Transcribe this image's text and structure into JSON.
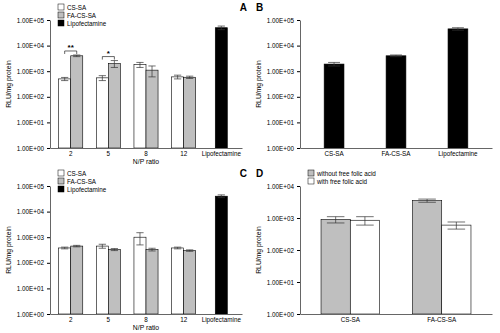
{
  "chart_data": [
    {
      "type": "bar",
      "title": "A",
      "x_label": "N/P ratio",
      "y_label": "RLU/mg protein",
      "log": "y",
      "legend": "top-left",
      "categories": [
        "2",
        "5",
        "8",
        "12",
        "Lipofectamine"
      ],
      "series": [
        {
          "name": "CS-SA",
          "color": "#ffffff",
          "values": [
            500,
            550,
            1800,
            600,
            null
          ],
          "errors": [
            70,
            120,
            400,
            100,
            null
          ]
        },
        {
          "name": "FA-CS-SA",
          "color": "#bfbfbf",
          "values": [
            4000,
            2000,
            1100,
            580,
            null
          ],
          "errors": [
            300,
            600,
            500,
            60,
            null
          ]
        },
        {
          "name": "Lipofectamine",
          "color": "#000000",
          "values": [
            null,
            null,
            null,
            null,
            50000
          ],
          "errors": [
            null,
            null,
            null,
            null,
            8000
          ]
        }
      ],
      "annotations": [
        {
          "text": "**",
          "category": "2"
        },
        {
          "text": "*",
          "category": "5"
        }
      ],
      "ylim": [
        1,
        100000
      ],
      "yticks": [
        {
          "value": 1,
          "label": "1.00E+00"
        },
        {
          "value": 10,
          "label": "1.00E+01"
        },
        {
          "value": 100,
          "label": "1.00E+02"
        },
        {
          "value": 1000,
          "label": "1.00E+03"
        },
        {
          "value": 10000,
          "label": "1.00E+04"
        },
        {
          "value": 100000,
          "label": "1.00E+05"
        }
      ]
    },
    {
      "type": "bar",
      "title": "B",
      "y_label": "RLU/mg protein",
      "log": "y",
      "categories": [
        "CS-SA",
        "FA-CS-SA",
        "Lipofectamine"
      ],
      "values": [
        1900,
        4000,
        45000
      ],
      "errors": [
        300,
        300,
        5000
      ],
      "color": "#000000",
      "ylim": [
        1,
        100000
      ],
      "yticks": [
        {
          "value": 1,
          "label": "1.00E+00"
        },
        {
          "value": 10,
          "label": "1.00E+01"
        },
        {
          "value": 100,
          "label": "1.00E+02"
        },
        {
          "value": 1000,
          "label": "1.00E+03"
        },
        {
          "value": 10000,
          "label": "1.00E+04"
        },
        {
          "value": 100000,
          "label": "1.00E+05"
        }
      ]
    },
    {
      "type": "bar",
      "title": "C",
      "x_label": "N/P ratio",
      "y_label": "RLU/mg protein",
      "log": "y",
      "legend": "top-left",
      "categories": [
        "2",
        "5",
        "8",
        "12",
        "Lipofectamine"
      ],
      "series": [
        {
          "name": "CS-SA",
          "color": "#ffffff",
          "values": [
            380,
            450,
            1000,
            380,
            null
          ],
          "errors": [
            30,
            80,
            500,
            30,
            null
          ]
        },
        {
          "name": "FA-CS-SA",
          "color": "#bfbfbf",
          "values": [
            450,
            330,
            330,
            300,
            null
          ],
          "errors": [
            30,
            30,
            40,
            20,
            null
          ]
        },
        {
          "name": "Lipofectamine",
          "color": "#000000",
          "values": [
            null,
            null,
            null,
            null,
            40000
          ],
          "errors": [
            null,
            null,
            null,
            null,
            5000
          ]
        }
      ],
      "ylim": [
        1,
        100000
      ],
      "yticks": [
        {
          "value": 1,
          "label": "1.00E+00"
        },
        {
          "value": 10,
          "label": "1.00E+01"
        },
        {
          "value": 100,
          "label": "1.00E+02"
        },
        {
          "value": 1000,
          "label": "1.00E+03"
        },
        {
          "value": 10000,
          "label": "1.00E+04"
        },
        {
          "value": 100000,
          "label": "1.00E+05"
        }
      ]
    },
    {
      "type": "bar",
      "title": "D",
      "y_label": "RLU/mg protein",
      "log": "y",
      "legend": "top-left",
      "categories": [
        "CS-SA",
        "FA-CS-SA"
      ],
      "series": [
        {
          "name": "without free folic acid",
          "color": "#bfbfbf",
          "values": [
            900,
            3500
          ],
          "errors": [
            200,
            400
          ]
        },
        {
          "name": "with free folic acid",
          "color": "#ffffff",
          "values": [
            850,
            600
          ],
          "errors": [
            250,
            150
          ]
        }
      ],
      "ylim": [
        1,
        10000
      ],
      "yticks": [
        {
          "value": 1,
          "label": "1.00E+00"
        },
        {
          "value": 10,
          "label": "1.00E+01"
        },
        {
          "value": 100,
          "label": "1.00E+02"
        },
        {
          "value": 1000,
          "label": "1.00E+03"
        },
        {
          "value": 10000,
          "label": "1.00E+04"
        }
      ]
    }
  ]
}
